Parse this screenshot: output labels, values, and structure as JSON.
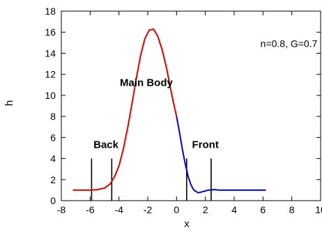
{
  "chart_data": {
    "type": "line",
    "title": "",
    "xlabel": "x",
    "ylabel": "h",
    "xlim": [
      -8,
      10
    ],
    "ylim": [
      0,
      18
    ],
    "x_ticks": [
      -8,
      -6,
      -4,
      -2,
      0,
      2,
      4,
      6,
      8,
      10
    ],
    "y_ticks": [
      0,
      2,
      4,
      6,
      8,
      10,
      12,
      14,
      16,
      18
    ],
    "x_tick_labels": [
      "-8",
      "-6",
      "-4",
      "-2",
      "0",
      "2",
      "4",
      "6",
      "8",
      "10"
    ],
    "y_tick_labels": [
      "0",
      "2",
      "4",
      "6",
      "8",
      "10",
      "12",
      "14",
      "16",
      "18"
    ],
    "grid": false,
    "series": [
      {
        "color": "#e00000",
        "x": [
          -7.2,
          -6.5,
          -6.0,
          -5.5,
          -5.0,
          -4.6,
          -4.3,
          -4.0,
          -3.7,
          -3.4,
          -3.1,
          -2.8,
          -2.5,
          -2.2,
          -1.9,
          -1.6,
          -1.3,
          -1.0,
          -0.7,
          -0.4,
          -0.2,
          0.0
        ],
        "y": [
          1.0,
          1.0,
          1.0,
          1.05,
          1.2,
          1.6,
          2.3,
          3.3,
          4.9,
          6.9,
          9.2,
          11.6,
          13.8,
          15.4,
          16.2,
          16.3,
          15.6,
          14.3,
          12.6,
          10.5,
          9.2,
          8.0
        ]
      },
      {
        "color": "#0000e0",
        "x": [
          0.0,
          0.2,
          0.4,
          0.6,
          0.8,
          1.0,
          1.2,
          1.5,
          1.8,
          2.2,
          2.6,
          3.0,
          3.5,
          4.0,
          5.0,
          6.2
        ],
        "y": [
          8.0,
          6.5,
          4.9,
          3.5,
          2.3,
          1.5,
          1.0,
          0.75,
          0.85,
          1.0,
          1.05,
          1.0,
          1.0,
          1.0,
          1.0,
          1.0
        ]
      }
    ],
    "vertical_markers": [
      {
        "x": -5.9,
        "y_top": 4.0
      },
      {
        "x": -4.5,
        "y_top": 4.0
      },
      {
        "x": 0.7,
        "y_top": 4.0
      },
      {
        "x": 2.4,
        "y_top": 4.0
      }
    ],
    "annotations": [
      {
        "text": "Main Body",
        "x": -2.1,
        "y": 10.9,
        "bold": true
      },
      {
        "text": "Back",
        "x": -4.9,
        "y": 5.0,
        "bold": true
      },
      {
        "text": "Front",
        "x": 2.0,
        "y": 5.0,
        "bold": true
      },
      {
        "text": "n=0.8, G=0.7",
        "x": 7.8,
        "y": 14.6,
        "bold": false
      }
    ]
  }
}
